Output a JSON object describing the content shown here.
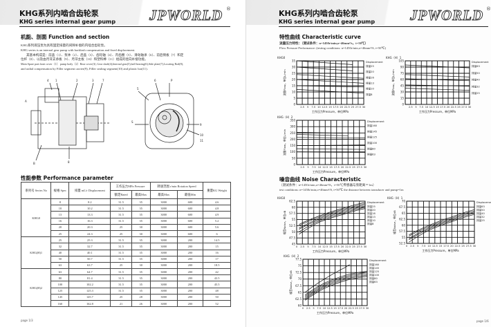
{
  "brand": {
    "logo": "JPWORLD",
    "registered": "®"
  },
  "left": {
    "title_cn": "KHG系列内啮合齿轮泵",
    "title_en": "KHG series internal gear pump",
    "section": "机能、剖面 Function and section",
    "paragraph": [
      "KHG系列液压泵为具有固定排量的间隙补偿的内啮合齿轮泵。",
      "KHG series is an internal gear pump with backlash compensation and fixed displacement.",
      "其基本构成是：前盖（1）、泵体（2）、后盖（3）、齿轮轴（4）、内齿圈（5）、滑动轴承（6）、前后侧板（7）和定",
      "位杆（8）、以及由月牙支承板（9）、月牙主板（10）和塑料棒（11）组成的径向补偿功能。",
      "Main Spare part:front cover（1） pump body（2）Rear cover(3) ,Gear shaft(4),Internal gear(5),ball bearing(6),Side plate(7),Locating Rod(8),",
      "and radial compensation by Filler segment carrier(9), Filler sealing segment(10) and plastic bar(11)."
    ],
    "diagram_callouts": [
      "4",
      "1",
      "2",
      "3",
      "7",
      "5",
      "6",
      "8",
      "9",
      "10",
      "11",
      "A",
      "B",
      "S",
      "P"
    ],
    "perf_title": "性能参数 Performance parameter",
    "table": {
      "headers": {
        "series": "系列号 Series No",
        "type": "规格 Spec",
        "disp": "排量 mL/r Displacement",
        "pressure": "工作压力MPa Pressure",
        "rated": "额定Rated",
        "max": "最高Max",
        "speed": "转速范围 r/min Rotation Speed",
        "speed_max": "最高Max",
        "speed_min": "最低Min",
        "weight": "重量KG Weight"
      },
      "groups": [
        {
          "series": "KHG0",
          "rows": [
            [
              "8",
              "8.2",
              "31.5",
              "35",
              "3000",
              "600",
              "4.6"
            ],
            [
              "10",
              "10.2",
              "31.5",
              "35",
              "3000",
              "600",
              "4.8"
            ],
            [
              "13",
              "13.3",
              "31.5",
              "35",
              "3000",
              "600",
              "4.9"
            ],
            [
              "16",
              "16.3",
              "31.5",
              "35",
              "3000",
              "600",
              "5.2"
            ],
            [
              "20",
              "20.3",
              "25",
              "30",
              "3000",
              "600",
              "5.6"
            ],
            [
              "25",
              "24.3",
              "25",
              "30",
              "3000",
              "600",
              "6"
            ]
          ]
        },
        {
          "series": "KHG(H)1",
          "rows": [
            [
              "25",
              "25.3",
              "31.5",
              "35",
              "3000",
              "200",
              "14.5"
            ],
            [
              "32",
              "32.7",
              "31.5",
              "35",
              "3000",
              "200",
              "15"
            ],
            [
              "40",
              "40.1",
              "31.5",
              "35",
              "3000",
              "200",
              "16"
            ],
            [
              "50",
              "50.7",
              "31.5",
              "35",
              "3000",
              "200",
              "17"
            ],
            [
              "63",
              "63.7",
              "25",
              "30",
              "3000",
              "200",
              "18.5"
            ]
          ]
        },
        {
          "series": "KHG(H)2",
          "rows": [
            [
              "63",
              "64.7",
              "31.5",
              "35",
              "3000",
              "200",
              "42"
            ],
            [
              "80",
              "81.4",
              "31.5",
              "35",
              "3000",
              "200",
              "43.5"
            ],
            [
              "100",
              "102.2",
              "31.5",
              "35",
              "3000",
              "200",
              "45.5"
            ],
            [
              "125",
              "125.3",
              "31.5",
              "35",
              "3000",
              "200",
              "48"
            ],
            [
              "145",
              "145.7",
              "25",
              "28",
              "3000",
              "200",
              "50"
            ],
            [
              "160",
              "162.8",
              "21",
              "26",
              "3000",
              "200",
              "52"
            ]
          ]
        }
      ]
    },
    "page": "page 1/3"
  },
  "right": {
    "title_cn": "KHG系列内啮合齿轮泵",
    "title_en": "KHG series internal gear pump",
    "char_title": "特性曲线 Characteristic  curve",
    "flow_cn": "流量压力特性：（测试条件：n=1450r/min,υ=46mm²/s，t=50℃）",
    "flow_en": "Flow  Pressure  Performance: (testing conditions:  n=1450r/min,υ=46mm²/S,  t=50℃)",
    "noise_title": "噪音曲线 Noise Characteristic",
    "noise_cn": "（测试条件：n=1450r/min,υ=46mm²/S，t=50℃传感器与泵距离＝1m）",
    "noise_en": "test conditions:  n=1450r/min,υ=46mm²/S,  t=50℃  the  distance between transducer and pump=1m",
    "page": "page 1/6"
  },
  "chart_data": [
    {
      "type": "line",
      "title": "KHG0",
      "xlabel": "工作压力Pressure，单位MPa",
      "ylabel": "流量Flow，单位L/min",
      "legend_title": "Displacement",
      "xlim": [
        0,
        30
      ],
      "ylim": [
        0,
        35
      ],
      "xticks": [
        "2.5",
        "5",
        "7.5",
        "10",
        "12.5",
        "15",
        "17.5",
        "20",
        "22.5",
        "25",
        "27.5",
        "30"
      ],
      "yticks": [
        "0",
        "5",
        "10",
        "15",
        "20",
        "25",
        "30",
        "35"
      ],
      "series": [
        {
          "name": "排量25",
          "x": [
            0,
            25
          ],
          "y": [
            35,
            32
          ]
        },
        {
          "name": "排量20",
          "x": [
            0,
            25
          ],
          "y": [
            30,
            27
          ]
        },
        {
          "name": "排量16",
          "x": [
            0,
            30
          ],
          "y": [
            24,
            21
          ]
        },
        {
          "name": "排量13",
          "x": [
            0,
            30
          ],
          "y": [
            20,
            17
          ]
        },
        {
          "name": "排量10",
          "x": [
            0,
            30
          ],
          "y": [
            15,
            14
          ]
        },
        {
          "name": "排量8",
          "x": [
            0,
            30
          ],
          "y": [
            12,
            9
          ]
        }
      ]
    },
    {
      "type": "line",
      "title": "KHG（H）1",
      "xlabel": "工作压力Pressure，单位MPa",
      "ylabel": "流量Flow，单位L/min",
      "legend_title": "Displacement",
      "xlim": [
        0,
        30
      ],
      "ylim": [
        0,
        105
      ],
      "xticks": [
        "2.5",
        "5",
        "7.5",
        "10",
        "12.5",
        "15",
        "17.5",
        "20",
        "22.5",
        "25",
        "27.5",
        "30"
      ],
      "yticks": [
        "0",
        "15",
        "30",
        "45",
        "60",
        "75",
        "90",
        "105"
      ],
      "series": [
        {
          "name": "排量63",
          "x": [
            0,
            30
          ],
          "y": [
            95,
            88
          ]
        },
        {
          "name": "排量50",
          "x": [
            0,
            30
          ],
          "y": [
            72,
            66
          ]
        },
        {
          "name": "排量40",
          "x": [
            0,
            30
          ],
          "y": [
            62,
            57
          ]
        },
        {
          "name": "排量32",
          "x": [
            0,
            30
          ],
          "y": [
            47,
            44
          ]
        },
        {
          "name": "排量25",
          "x": [
            0,
            30
          ],
          "y": [
            39,
            34
          ]
        }
      ]
    },
    {
      "type": "line",
      "title": "KHG（H）2",
      "xlabel": "工作压力Pressure，单位MPa",
      "ylabel": "流量Flow，单位L/min",
      "legend_title": "Displacement",
      "xlim": [
        0,
        30
      ],
      "ylim": [
        0,
        350
      ],
      "xticks": [
        "2.5",
        "5",
        "7.5",
        "10",
        "12.5",
        "15",
        "17.5",
        "20",
        "22.5",
        "25",
        "27.5",
        "30"
      ],
      "yticks": [
        "0",
        "50",
        "100",
        "150",
        "200",
        "250",
        "300",
        "350"
      ],
      "series": [
        {
          "name": "排量160",
          "x": [
            0,
            20
          ],
          "y": [
            255,
            248
          ]
        },
        {
          "name": "排量145",
          "x": [
            0,
            22.5
          ],
          "y": [
            238,
            228
          ]
        },
        {
          "name": "排量125",
          "x": [
            0,
            30
          ],
          "y": [
            215,
            210
          ]
        },
        {
          "name": "排量100",
          "x": [
            0,
            30
          ],
          "y": [
            150,
            155
          ]
        },
        {
          "name": "排量80",
          "x": [
            0,
            30
          ],
          "y": [
            125,
            120
          ]
        },
        {
          "name": "排量63",
          "x": [
            0,
            30
          ],
          "y": [
            100,
            95
          ]
        }
      ]
    },
    {
      "type": "line",
      "title": "KHG0",
      "xlabel": "工作压力Pressure，单位MPa",
      "ylabel": "噪音Noise，单位dB",
      "legend_title": "Displacement",
      "xlim": [
        0,
        30
      ],
      "ylim": [
        45,
        62.5
      ],
      "xticks": [
        "0",
        "2.5",
        "5",
        "7.5",
        "10",
        "12.5",
        "15",
        "17.5",
        "20",
        "22.5",
        "25",
        "27.5",
        "30"
      ],
      "yticks": [
        "45",
        "47.5",
        "50",
        "52.5",
        "55",
        "57.5",
        "60",
        "62.5"
      ],
      "series": [
        {
          "name": "排量25",
          "x": [
            1,
            10,
            20,
            30
          ],
          "y": [
            53,
            56.5,
            59.5,
            62
          ]
        },
        {
          "name": "排量20",
          "x": [
            1,
            10,
            20,
            30
          ],
          "y": [
            52.5,
            56,
            59,
            61.5
          ]
        },
        {
          "name": "排量16",
          "x": [
            1,
            10,
            20,
            30
          ],
          "y": [
            51.5,
            55.5,
            58.5,
            61
          ]
        },
        {
          "name": "排量13",
          "x": [
            1,
            10,
            20,
            30
          ],
          "y": [
            51,
            55,
            58,
            60.5
          ]
        },
        {
          "name": "排量10",
          "x": [
            1,
            10,
            20,
            30
          ],
          "y": [
            50,
            54.5,
            57.5,
            60
          ]
        },
        {
          "name": "排量8",
          "x": [
            1,
            10,
            20,
            30
          ],
          "y": [
            49,
            54,
            57,
            59.5
          ]
        }
      ]
    },
    {
      "type": "line",
      "title": "KHG（H）1",
      "xlabel": "工作压力Pressure，单位MPa",
      "ylabel": "噪音Noise，单位dB",
      "legend_title": "Displacement",
      "xlim": [
        0,
        30
      ],
      "ylim": [
        52.5,
        70
      ],
      "xticks": [
        "0",
        "2.5",
        "5",
        "7.5",
        "10",
        "12.5",
        "15",
        "17.5",
        "20",
        "22.5",
        "25",
        "27.5",
        "30"
      ],
      "yticks": [
        "52.5",
        "55",
        "57.5",
        "60",
        "62.5",
        "65",
        "67.5",
        "70"
      ],
      "series": [
        {
          "name": "排量63",
          "x": [
            1,
            10,
            20,
            30
          ],
          "y": [
            56,
            60,
            63.5,
            66.5
          ]
        },
        {
          "name": "排量50",
          "x": [
            1,
            10,
            20,
            30
          ],
          "y": [
            55.5,
            59.5,
            63,
            66
          ]
        },
        {
          "name": "排量40",
          "x": [
            1,
            10,
            20,
            30
          ],
          "y": [
            54.5,
            59,
            62.5,
            65.5
          ]
        },
        {
          "name": "排量32",
          "x": [
            1,
            10,
            20,
            30
          ],
          "y": [
            54,
            58.5,
            62,
            65
          ]
        },
        {
          "name": "排量25",
          "x": [
            1,
            10,
            20,
            30
          ],
          "y": [
            53,
            58,
            61.5,
            64.5
          ]
        }
      ]
    },
    {
      "type": "line",
      "title": "KHG（H）2",
      "xlabel": "工作压力Pressure，单位MPa",
      "ylabel": "噪音Noise，单位dB",
      "legend_title": "Displacement",
      "xlim": [
        0,
        30
      ],
      "ylim": [
        60,
        77.5
      ],
      "xticks": [
        "0",
        "2.5",
        "5",
        "7.5",
        "10",
        "12.5",
        "15",
        "17.5",
        "20",
        "22.5",
        "25",
        "27.5",
        "30"
      ],
      "yticks": [
        "60",
        "62.5",
        "65",
        "67.5",
        "70",
        "72.5",
        "75",
        "77.5"
      ],
      "series": [
        {
          "name": "排量160",
          "x": [
            1,
            10,
            20,
            22
          ],
          "y": [
            65,
            70,
            74.5,
            75.5
          ]
        },
        {
          "name": "排量145",
          "x": [
            1,
            10,
            20,
            30
          ],
          "y": [
            64,
            68.5,
            71.5,
            73
          ]
        },
        {
          "name": "排量125",
          "x": [
            1,
            10,
            20,
            30
          ],
          "y": [
            63.5,
            68,
            71,
            72.5
          ]
        },
        {
          "name": "排量100",
          "x": [
            1,
            10,
            20,
            30
          ],
          "y": [
            63,
            67.5,
            70.5,
            72
          ]
        },
        {
          "name": "排量80",
          "x": [
            1,
            10,
            20,
            30
          ],
          "y": [
            62.5,
            67,
            70,
            71.5
          ]
        },
        {
          "name": "排量63",
          "x": [
            1,
            10,
            20,
            30
          ],
          "y": [
            62,
            66.5,
            69.5,
            71
          ]
        }
      ]
    }
  ]
}
